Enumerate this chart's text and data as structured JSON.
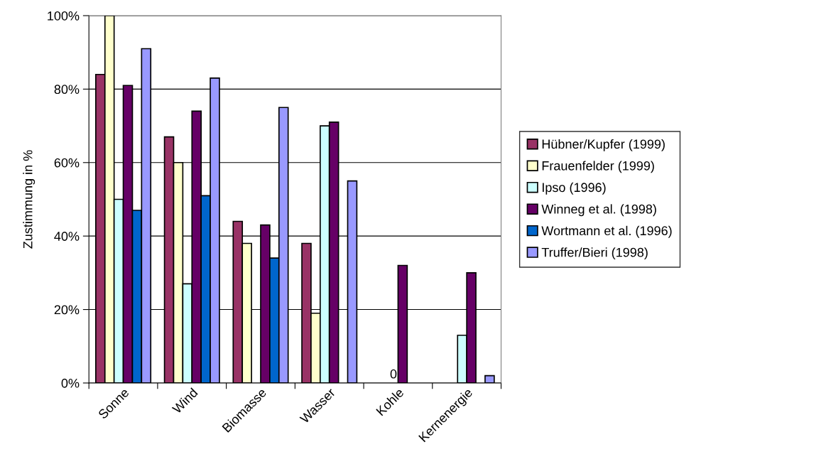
{
  "chart_data": {
    "type": "bar",
    "ylabel": "Zustimmung in %",
    "categories": [
      "Sonne",
      "Wind",
      "Biomasse",
      "Wasser",
      "Kohle",
      "Kernenergie"
    ],
    "series": [
      {
        "name": "Hübner/Kupfer (1999)",
        "color": "#993366",
        "values": [
          84,
          67,
          44,
          38,
          null,
          null
        ]
      },
      {
        "name": "Frauenfelder (1999)",
        "color": "#ffffcc",
        "values": [
          100,
          60,
          38,
          19,
          null,
          null
        ]
      },
      {
        "name": "Ipso (1996)",
        "color": "#ccffff",
        "values": [
          50,
          27,
          null,
          70,
          0,
          13
        ],
        "value_labels": [
          null,
          null,
          null,
          null,
          "0",
          null
        ]
      },
      {
        "name": "Winneg et al. (1998)",
        "color": "#660066",
        "values": [
          81,
          74,
          43,
          71,
          32,
          30
        ]
      },
      {
        "name": "Wortmann et al. (1996)",
        "color": "#0066cc",
        "values": [
          47,
          51,
          34,
          null,
          null,
          null
        ]
      },
      {
        "name": "Truffer/Bieri (1998)",
        "color": "#9999ff",
        "values": [
          91,
          83,
          75,
          55,
          null,
          2
        ]
      }
    ],
    "ylim": [
      0,
      100
    ],
    "yticks": [
      {
        "value": 0,
        "label": "0%"
      },
      {
        "value": 20,
        "label": "20%"
      },
      {
        "value": 40,
        "label": "40%"
      },
      {
        "value": 60,
        "label": "60%"
      },
      {
        "value": 80,
        "label": "80%"
      },
      {
        "value": 100,
        "label": "100%"
      }
    ],
    "grid": "y",
    "legend": "right"
  }
}
